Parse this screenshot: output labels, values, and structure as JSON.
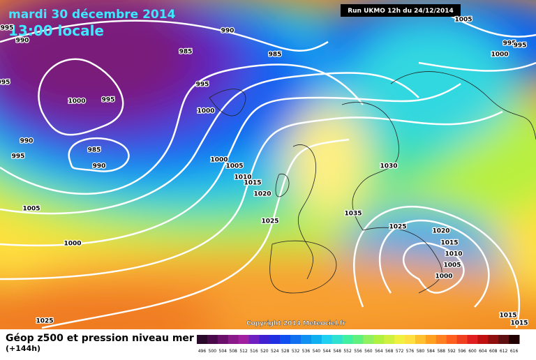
{
  "header": {
    "date": "mardi 30 décembre 2014",
    "time": "13:00 locale",
    "run": "Run UKMO 12h du 24/12/2014",
    "copyright": "Copyright 2014 Meteociel.fr"
  },
  "isobars": [
    "990",
    "990",
    "985",
    "985",
    "995",
    "995",
    "995",
    "1000",
    "995",
    "1000",
    "990",
    "985",
    "990",
    "995",
    "1000",
    "1005",
    "1010",
    "1015",
    "1020",
    "1005",
    "1025",
    "1000",
    "1025",
    "1005",
    "1000",
    "995",
    "995",
    "1030",
    "1035",
    "1025",
    "1020",
    "1015",
    "1010",
    "1005",
    "1000",
    "1015",
    "1015"
  ],
  "legend": {
    "title": "Géop z500 et pression niveau mer",
    "subtitle": "(+144h)",
    "scale": [
      496,
      500,
      504,
      508,
      512,
      516,
      520,
      524,
      528,
      532,
      536,
      540,
      544,
      548,
      552,
      556,
      560,
      564,
      568,
      572,
      576,
      580,
      584,
      588,
      592,
      596,
      600,
      604,
      608,
      612,
      616
    ]
  }
}
